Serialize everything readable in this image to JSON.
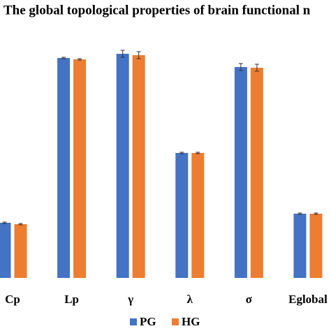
{
  "chart_data": {
    "type": "bar",
    "title": "The global topological properties of brain functional n",
    "categories": [
      "Cp",
      "Lp",
      "γ",
      "λ",
      "σ",
      "Eglobal"
    ],
    "series": [
      {
        "name": "PG",
        "color": "#4472c4",
        "values": [
          79,
          315,
          321,
          179,
          302,
          92
        ],
        "errors": [
          1,
          1,
          5,
          1,
          5,
          1
        ]
      },
      {
        "name": "HG",
        "color": "#ed7d31",
        "values": [
          77,
          313,
          319,
          179,
          301,
          92
        ],
        "errors": [
          1,
          1,
          5,
          1,
          5,
          1
        ]
      }
    ],
    "ylim": [
      0,
      330
    ]
  }
}
